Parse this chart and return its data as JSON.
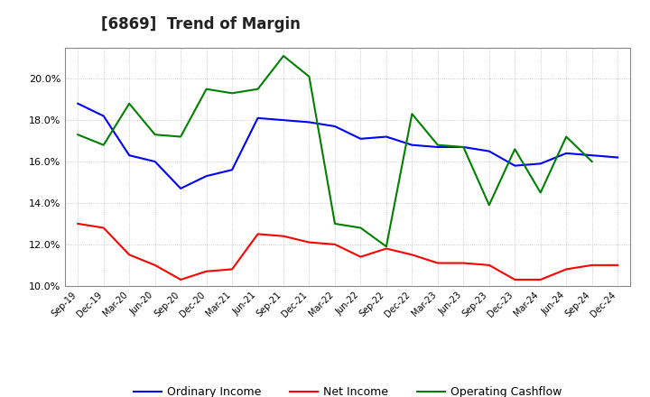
{
  "title": "[6869]  Trend of Margin",
  "x_labels": [
    "Sep-19",
    "Dec-19",
    "Mar-20",
    "Jun-20",
    "Sep-20",
    "Dec-20",
    "Mar-21",
    "Jun-21",
    "Sep-21",
    "Dec-21",
    "Mar-22",
    "Jun-22",
    "Sep-22",
    "Dec-22",
    "Mar-23",
    "Jun-23",
    "Sep-23",
    "Dec-23",
    "Mar-24",
    "Jun-24",
    "Sep-24",
    "Dec-24"
  ],
  "ordinary_income": [
    18.8,
    18.2,
    16.3,
    16.0,
    14.7,
    15.3,
    15.6,
    18.1,
    18.0,
    17.9,
    17.7,
    17.1,
    17.2,
    16.8,
    16.7,
    16.7,
    16.5,
    15.8,
    15.9,
    16.4,
    16.3,
    16.2
  ],
  "net_income": [
    13.0,
    12.8,
    11.5,
    11.0,
    10.3,
    10.7,
    10.8,
    12.5,
    12.4,
    12.1,
    12.0,
    11.4,
    11.8,
    11.5,
    11.1,
    11.1,
    11.0,
    10.3,
    10.3,
    10.8,
    11.0,
    11.0
  ],
  "operating_cashflow": [
    17.3,
    16.8,
    18.8,
    17.3,
    17.2,
    19.5,
    19.3,
    19.5,
    21.1,
    20.1,
    13.0,
    12.8,
    11.9,
    18.3,
    16.8,
    16.7,
    13.9,
    16.6,
    14.5,
    17.2,
    16.0,
    null
  ],
  "ylim": [
    10.0,
    21.5
  ],
  "yticks": [
    10.0,
    12.0,
    14.0,
    16.0,
    18.0,
    20.0
  ],
  "line_colors": {
    "ordinary_income": "#0000ff",
    "net_income": "#ff0000",
    "operating_cashflow": "#008000"
  },
  "legend_labels": [
    "Ordinary Income",
    "Net Income",
    "Operating Cashflow"
  ],
  "background_color": "#ffffff",
  "grid_color": "#bbbbbb",
  "title_fontsize": 12,
  "tick_fontsize": 7,
  "legend_fontsize": 9,
  "linewidth": 1.5
}
